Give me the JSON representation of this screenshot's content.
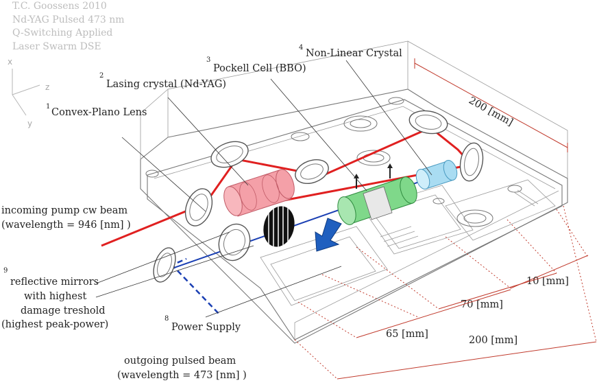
{
  "meta": {
    "author": "T.C. Goossens 2010",
    "laser": "Nd-YAG Pulsed 473 nm",
    "mode": "Q-Switching Applied",
    "project": "Laser Swarm DSE"
  },
  "axes": {
    "x": "x",
    "z": "z",
    "y": "y"
  },
  "components": [
    {
      "num": "1",
      "label": "Convex-Plano Lens"
    },
    {
      "num": "2",
      "label": "Lasing crystal (Nd-YAG)"
    },
    {
      "num": "3",
      "label": "Pockell Cell (BBO)"
    },
    {
      "num": "4",
      "label": "Non-Linear Crystal"
    },
    {
      "num": "8",
      "label": "Power Supply"
    },
    {
      "num": "9",
      "label_lines": [
        "reflective mirrors",
        "with highest",
        "damage treshold",
        "(highest peak-power)"
      ]
    }
  ],
  "beams": {
    "pump": {
      "line1": "incoming pump cw beam",
      "line2": "(wavelength = 946 [nm] )",
      "color": "#e02020"
    },
    "output": {
      "line1": "outgoing pulsed beam",
      "line2": "(wavelength = 473 [nm] )",
      "color": "#1a3fb3"
    }
  },
  "dimensions": {
    "top_depth": "200 [mm]",
    "d10": "10 [mm]",
    "d70": "70 [mm]",
    "d65": "65 [mm]",
    "bottom_length": "200 [mm]",
    "color": "#c0392b"
  },
  "component_colors": {
    "lasing_crystal": "#f4a0a8",
    "pockels_cell": "#7fd88a",
    "nonlinear_crystal": "#a9dcf2"
  }
}
